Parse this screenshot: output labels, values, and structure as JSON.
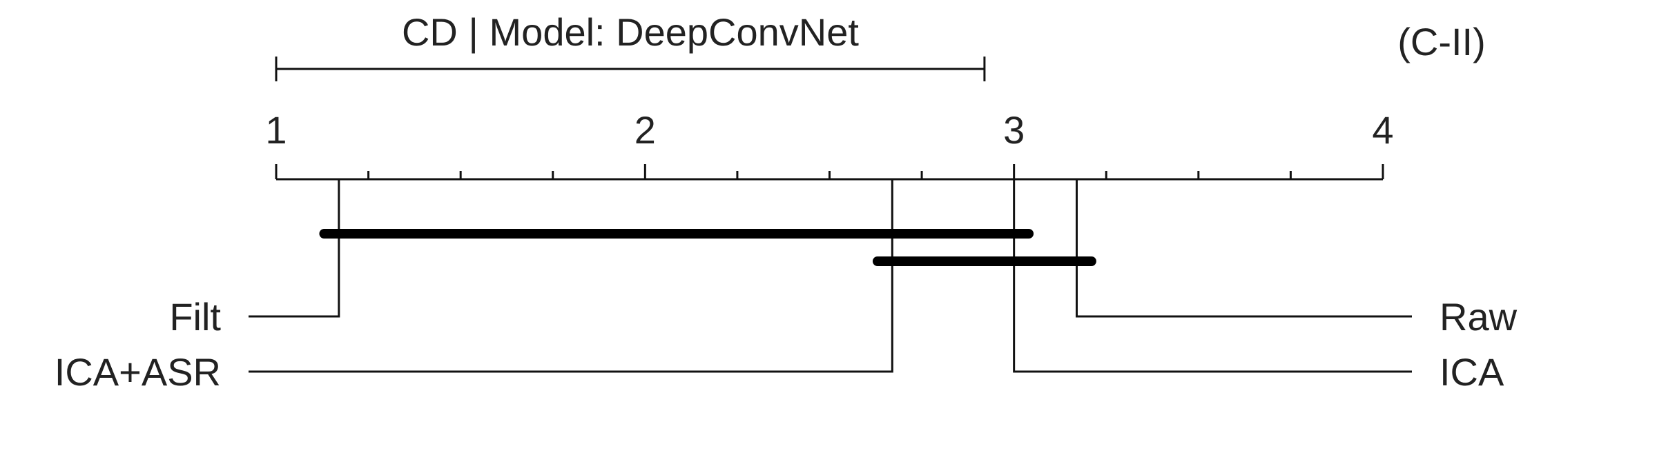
{
  "chart_data": {
    "type": "critical-difference-diagram",
    "title": "CD | Model: DeepConvNet",
    "panel_label": "(C-II)",
    "axis": {
      "min": 1,
      "max": 4,
      "major_ticks": [
        1,
        2,
        3,
        4
      ],
      "minor_step": 0.25,
      "tick_labels": [
        "1",
        "2",
        "3",
        "4"
      ]
    },
    "critical_difference": {
      "start": 1,
      "end": 2.92
    },
    "methods": [
      {
        "name": "Filt",
        "rank": 1.17,
        "side": "left",
        "row": 0
      },
      {
        "name": "ICA+ASR",
        "rank": 2.67,
        "side": "left",
        "row": 1
      },
      {
        "name": "ICA",
        "rank": 3.0,
        "side": "right",
        "row": 1
      },
      {
        "name": "Raw",
        "rank": 3.17,
        "side": "right",
        "row": 0
      }
    ],
    "cliques": [
      {
        "start": 1.13,
        "end": 3.04
      },
      {
        "start": 2.63,
        "end": 3.21
      }
    ]
  }
}
